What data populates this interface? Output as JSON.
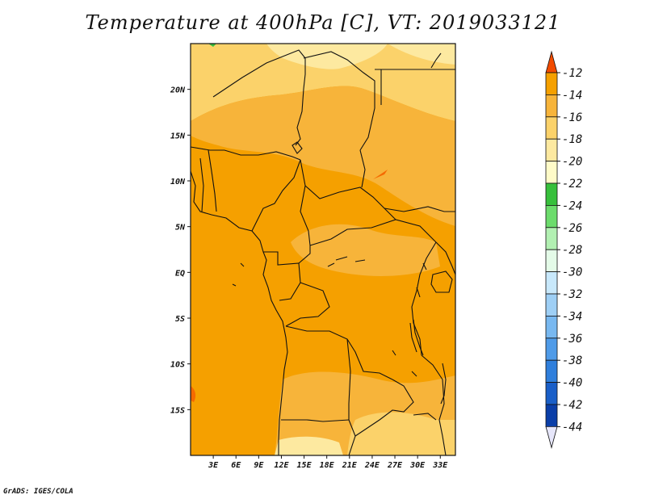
{
  "title": "Temperature at 400hPa [C], VT: 2019033121",
  "credit": "GrADS: IGES/COLA",
  "map": {
    "lon_range": [
      0,
      35
    ],
    "lat_range": [
      -20,
      25
    ],
    "x_ticks": [
      "3E",
      "6E",
      "9E",
      "12E",
      "15E",
      "18E",
      "21E",
      "24E",
      "27E",
      "30E",
      "33E"
    ],
    "x_tick_values": [
      3,
      6,
      9,
      12,
      15,
      18,
      21,
      24,
      27,
      30,
      33
    ],
    "y_ticks": [
      "20N",
      "15N",
      "10N",
      "5N",
      "EQ",
      "5S",
      "10S",
      "15S"
    ],
    "y_tick_values": [
      20,
      15,
      10,
      5,
      0,
      -5,
      -10,
      -15
    ],
    "base_color": "#f5a000"
  },
  "colorbar": {
    "levels": [
      "-12",
      "-14",
      "-16",
      "-18",
      "-20",
      "-22",
      "-24",
      "-26",
      "-28",
      "-30",
      "-32",
      "-34",
      "-36",
      "-38",
      "-40",
      "-42",
      "-44"
    ],
    "colors": [
      "#f56a00",
      "#f5a000",
      "#f7b43a",
      "#fbd26a",
      "#fde9a0",
      "#fffbc8",
      "#37c03c",
      "#6cdc6c",
      "#b2f0b2",
      "#e4fbe8",
      "#c8e8fb",
      "#9ecff5",
      "#78b8f0",
      "#4f9be8",
      "#2f7fdc",
      "#1a5fc8",
      "#0a3ea8",
      "#0a1a78"
    ],
    "top_color": "#f24b00",
    "bottom_color": "#e6e6fa"
  }
}
